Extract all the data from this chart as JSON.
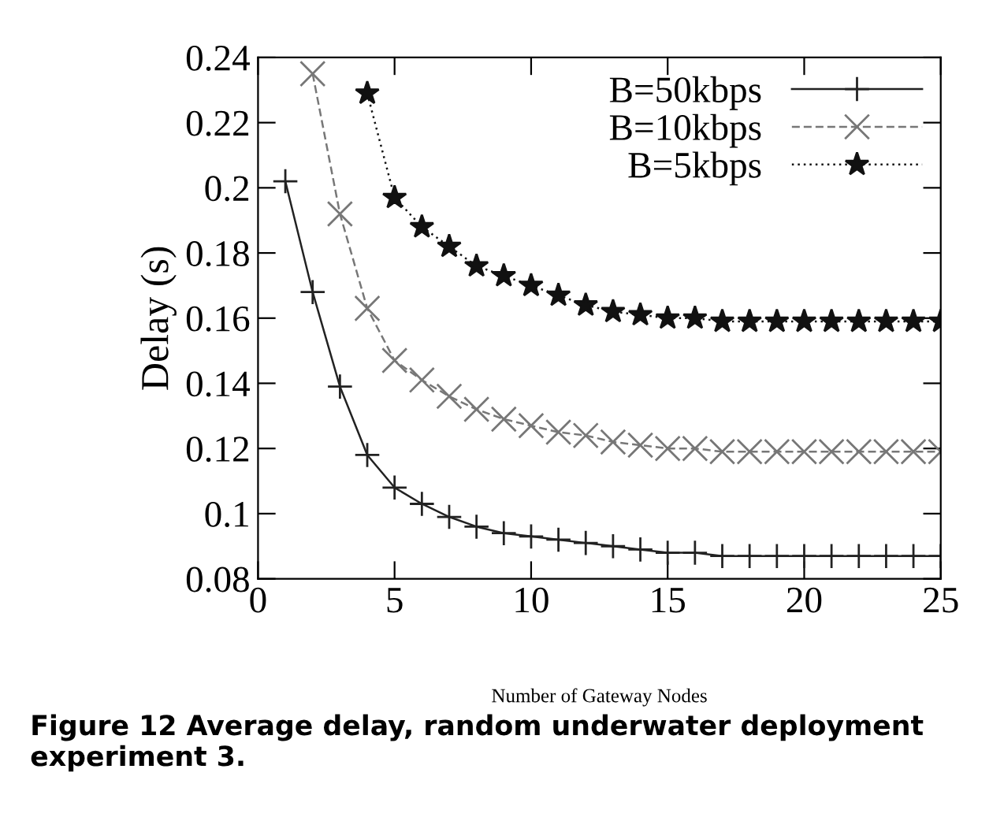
{
  "chart_data": {
    "type": "line",
    "xlabel": "Number of Gateway Nodes",
    "ylabel": "Delay (s)",
    "xlim": [
      0,
      25
    ],
    "xticks": [
      0,
      5,
      10,
      15,
      20,
      25
    ],
    "ylim": [
      0.08,
      0.24
    ],
    "yticks": [
      0.08,
      0.1,
      0.12,
      0.14,
      0.16,
      0.18,
      0.2,
      0.22,
      0.24
    ],
    "legend": "top right",
    "grid": false,
    "annotations": [
      "Figure 12 Average delay, random underwater deployment experiment 3."
    ],
    "series": [
      {
        "name": "B=50kbps",
        "color": "#222222",
        "marker": "plus",
        "line_style": "solid",
        "x": [
          1,
          2,
          3,
          4,
          5,
          6,
          7,
          8,
          9,
          10,
          11,
          12,
          13,
          14,
          15,
          16,
          17,
          18,
          19,
          20,
          21,
          22,
          23,
          24,
          25
        ],
        "values": [
          0.202,
          0.168,
          0.139,
          0.118,
          0.108,
          0.103,
          0.099,
          0.096,
          0.094,
          0.093,
          0.092,
          0.091,
          0.09,
          0.089,
          0.088,
          0.088,
          0.087,
          0.087,
          0.087,
          0.087,
          0.087,
          0.087,
          0.087,
          0.087,
          0.087
        ]
      },
      {
        "name": "B=10kbps",
        "color": "#777777",
        "marker": "cross",
        "line_style": "dashed",
        "x": [
          2,
          3,
          4,
          5,
          6,
          7,
          8,
          9,
          10,
          11,
          12,
          13,
          14,
          15,
          16,
          17,
          18,
          19,
          20,
          21,
          22,
          23,
          24,
          25
        ],
        "values": [
          0.235,
          0.192,
          0.163,
          0.147,
          0.141,
          0.136,
          0.132,
          0.129,
          0.127,
          0.125,
          0.124,
          0.122,
          0.121,
          0.12,
          0.12,
          0.119,
          0.119,
          0.119,
          0.119,
          0.119,
          0.119,
          0.119,
          0.119,
          0.119
        ]
      },
      {
        "name": "B=5kbps",
        "color": "#111111",
        "marker": "star",
        "line_style": "dotted",
        "x": [
          4,
          5,
          6,
          7,
          8,
          9,
          10,
          11,
          12,
          13,
          14,
          15,
          16,
          17,
          18,
          19,
          20,
          21,
          22,
          23,
          24,
          25
        ],
        "values": [
          0.229,
          0.197,
          0.188,
          0.182,
          0.176,
          0.173,
          0.17,
          0.167,
          0.164,
          0.162,
          0.161,
          0.16,
          0.16,
          0.159,
          0.159,
          0.159,
          0.159,
          0.159,
          0.159,
          0.159,
          0.159,
          0.159
        ]
      }
    ]
  }
}
